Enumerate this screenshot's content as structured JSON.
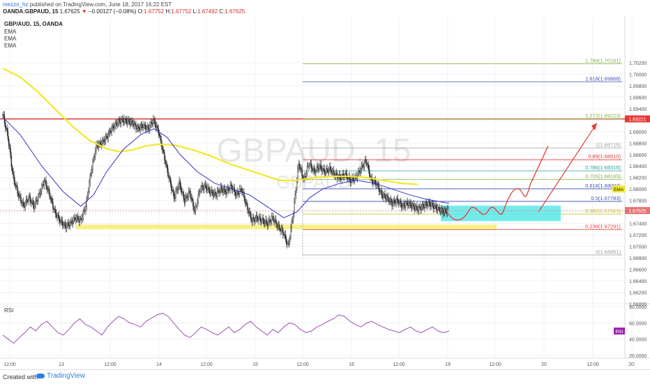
{
  "header": {
    "author": "mezzo_hz",
    "published": "published on TradingView.com, June 18, 2017 16:22 EST",
    "symbol_line": "OANDA:GBPAUD, 15",
    "last": "1.67625",
    "change_arrow": "▼",
    "change": "−0.00127 (−0.08%)",
    "o_label": "O:",
    "o": "1.67752",
    "h_label": "H:",
    "h": "1.67752",
    "l_label": "L:",
    "l": "1.67492",
    "c_label": "C:",
    "c": "1.67625"
  },
  "legend": {
    "title": "GBP/AUD, 15, OANDA",
    "items": [
      "EMA",
      "EMA",
      "EMA"
    ]
  },
  "watermark": {
    "big": "GBPAUD, 15",
    "small": "GBPAUD"
  },
  "price_tags": {
    "red_line": "1.69221",
    "current": "1.67625",
    "ema": "EMA"
  },
  "rsi_panel": {
    "label": "RSI",
    "tag": "RSI"
  },
  "footer": {
    "created": "Created with",
    "brand": "TradingView"
  },
  "colors": {
    "candle": "#222222",
    "ema_fast": "#3333cc",
    "ema_slow": "#f2e82a",
    "resistance": "#e53935",
    "support_band": "#f5ee7a",
    "target_box": "#5ce8e8",
    "projection": "#e53935",
    "rsi_line": "#9c4fb0",
    "rsi_tag": "#9c27b0",
    "grid": "#f0f0f0"
  },
  "chart_data": [
    {
      "type": "candlestick",
      "title": "GBP/AUD, 15, OANDA",
      "ylim": [
        1.66,
        1.71
      ],
      "y_ticks": [
        "1.70200",
        "1.70000",
        "1.69800",
        "1.69600",
        "1.69400",
        "1.69200",
        "1.69000",
        "1.68800",
        "1.68600",
        "1.68400",
        "1.68200",
        "1.68000",
        "1.67800",
        "1.67600",
        "1.67400",
        "1.67200",
        "1.67000",
        "1.66800",
        "1.66600",
        "1.66400",
        "1.66200",
        "1.66000"
      ],
      "x_ticks": [
        "12:00",
        "13",
        "12:00",
        "14",
        "12:00",
        "15",
        "12:00",
        "16",
        "12:00",
        "19",
        "12:00",
        "20",
        "12:00",
        "20:"
      ],
      "price_path": [
        [
          0,
          1.693
        ],
        [
          6,
          1.689
        ],
        [
          12,
          1.682
        ],
        [
          18,
          1.679
        ],
        [
          24,
          1.677
        ],
        [
          30,
          1.6785
        ],
        [
          36,
          1.677
        ],
        [
          42,
          1.679
        ],
        [
          48,
          1.6815
        ],
        [
          54,
          1.679
        ],
        [
          60,
          1.676
        ],
        [
          66,
          1.6745
        ],
        [
          72,
          1.6735
        ],
        [
          78,
          1.674
        ],
        [
          84,
          1.675
        ],
        [
          90,
          1.6745
        ],
        [
          96,
          1.677
        ],
        [
          102,
          1.683
        ],
        [
          108,
          1.6875
        ],
        [
          114,
          1.688
        ],
        [
          120,
          1.689
        ],
        [
          126,
          1.6905
        ],
        [
          132,
          1.6915
        ],
        [
          138,
          1.692
        ],
        [
          144,
          1.6918
        ],
        [
          150,
          1.6915
        ],
        [
          156,
          1.6905
        ],
        [
          162,
          1.691
        ],
        [
          168,
          1.6905
        ],
        [
          174,
          1.692
        ],
        [
          180,
          1.69
        ],
        [
          186,
          1.686
        ],
        [
          192,
          1.682
        ],
        [
          198,
          1.6785
        ],
        [
          204,
          1.681
        ],
        [
          210,
          1.678
        ],
        [
          216,
          1.6795
        ],
        [
          222,
          1.676
        ],
        [
          228,
          1.68
        ],
        [
          234,
          1.6805
        ],
        [
          240,
          1.6795
        ],
        [
          246,
          1.679
        ],
        [
          252,
          1.68
        ],
        [
          258,
          1.6795
        ],
        [
          264,
          1.6805
        ],
        [
          270,
          1.679
        ],
        [
          276,
          1.68
        ],
        [
          282,
          1.677
        ],
        [
          288,
          1.6745
        ],
        [
          294,
          1.675
        ],
        [
          300,
          1.6745
        ],
        [
          306,
          1.674
        ],
        [
          312,
          1.675
        ],
        [
          318,
          1.6735
        ],
        [
          324,
          1.6725
        ],
        [
          330,
          1.67
        ],
        [
          336,
          1.676
        ],
        [
          342,
          1.6845
        ],
        [
          348,
          1.6815
        ],
        [
          354,
          1.6845
        ],
        [
          360,
          1.683
        ],
        [
          366,
          1.684
        ],
        [
          372,
          1.683
        ],
        [
          378,
          1.6835
        ],
        [
          384,
          1.6825
        ],
        [
          390,
          1.682
        ],
        [
          396,
          1.6825
        ],
        [
          402,
          1.6815
        ],
        [
          408,
          1.682
        ],
        [
          414,
          1.6835
        ],
        [
          420,
          1.685
        ],
        [
          426,
          1.6815
        ],
        [
          432,
          1.681
        ],
        [
          438,
          1.679
        ],
        [
          444,
          1.6785
        ],
        [
          450,
          1.6775
        ],
        [
          456,
          1.678
        ],
        [
          462,
          1.677
        ],
        [
          468,
          1.6775
        ],
        [
          474,
          1.677
        ],
        [
          480,
          1.6765
        ],
        [
          486,
          1.677
        ],
        [
          492,
          1.6775
        ],
        [
          498,
          1.677
        ],
        [
          504,
          1.6765
        ],
        [
          510,
          1.676
        ],
        [
          516,
          1.6765
        ]
      ],
      "ema_fast": [
        [
          0,
          1.6925
        ],
        [
          20,
          1.6895
        ],
        [
          45,
          1.684
        ],
        [
          70,
          1.6795
        ],
        [
          90,
          1.677
        ],
        [
          105,
          1.679
        ],
        [
          120,
          1.683
        ],
        [
          140,
          1.687
        ],
        [
          160,
          1.6895
        ],
        [
          175,
          1.6905
        ],
        [
          190,
          1.689
        ],
        [
          205,
          1.686
        ],
        [
          225,
          1.683
        ],
        [
          245,
          1.681
        ],
        [
          265,
          1.68
        ],
        [
          285,
          1.679
        ],
        [
          305,
          1.677
        ],
        [
          325,
          1.675
        ],
        [
          340,
          1.676
        ],
        [
          355,
          1.6785
        ],
        [
          370,
          1.68
        ],
        [
          390,
          1.681
        ],
        [
          410,
          1.6815
        ],
        [
          430,
          1.681
        ],
        [
          450,
          1.68
        ],
        [
          470,
          1.679
        ],
        [
          490,
          1.6782
        ],
        [
          516,
          1.6775
        ]
      ],
      "ema_slow": [
        [
          0,
          1.701
        ],
        [
          20,
          1.6995
        ],
        [
          40,
          1.697
        ],
        [
          60,
          1.694
        ],
        [
          80,
          1.691
        ],
        [
          100,
          1.6885
        ],
        [
          120,
          1.687
        ],
        [
          135,
          1.6865
        ],
        [
          150,
          1.6868
        ],
        [
          165,
          1.6875
        ],
        [
          180,
          1.6878
        ],
        [
          200,
          1.6876
        ],
        [
          220,
          1.6868
        ],
        [
          240,
          1.6858
        ],
        [
          260,
          1.6845
        ],
        [
          280,
          1.6835
        ],
        [
          300,
          1.6825
        ],
        [
          320,
          1.6815
        ],
        [
          340,
          1.6815
        ],
        [
          360,
          1.682
        ],
        [
          380,
          1.6822
        ],
        [
          400,
          1.6822
        ],
        [
          420,
          1.682
        ],
        [
          440,
          1.6815
        ],
        [
          460,
          1.681
        ],
        [
          480,
          1.6808
        ]
      ],
      "fibonacci": [
        {
          "label": "1.786(1.70181)",
          "level": 1.70181,
          "color": "#7cb342"
        },
        {
          "label": "1.618(1.69868)",
          "level": 1.69868,
          "color": "#3f51b5"
        },
        {
          "label": "1.272(1.69223)",
          "level": 1.69223,
          "color": "#7cb342"
        },
        {
          "label": "1(1.68715)",
          "level": 1.68715,
          "color": "#9e9e9e"
        },
        {
          "label": "0.89(1.68510)",
          "level": 1.6851,
          "color": "#e53935"
        },
        {
          "label": "0.786(1.68316)",
          "level": 1.68316,
          "color": "#26a69a"
        },
        {
          "label": "0.705(1.68165)",
          "level": 1.68165,
          "color": "#7cb342"
        },
        {
          "label": "0.618(1.68003)",
          "level": 1.68003,
          "color": "#3f51b5"
        },
        {
          "label": "0.5(1.67783)",
          "level": 1.67783,
          "color": "#3f51b5"
        },
        {
          "label": "0.382(1.67563)",
          "level": 1.67563,
          "color": "#c0ca33"
        },
        {
          "label": "0.236(1.67291)",
          "level": 1.67291,
          "color": "#e53935"
        },
        {
          "label": "0(1.66851)",
          "level": 1.66851,
          "color": "#9e9e9e"
        }
      ],
      "resistance_level": 1.69221,
      "support_band": [
        1.673,
        1.6738
      ],
      "target_zone": [
        1.6744,
        1.6771
      ],
      "current_price": 1.67625
    },
    {
      "type": "line",
      "title": "RSI",
      "ylim": [
        20,
        80
      ],
      "y_ticks": [
        "80.0000",
        "60.0000",
        "40.0000",
        "20.0000"
      ],
      "values": [
        45,
        40,
        35,
        42,
        48,
        55,
        50,
        58,
        62,
        55,
        48,
        45,
        52,
        60,
        65,
        58,
        55,
        50,
        45,
        55,
        62,
        68,
        65,
        60,
        58,
        55,
        62,
        66,
        70,
        72,
        68,
        60,
        52,
        45,
        42,
        48,
        55,
        52,
        48,
        45,
        50,
        55,
        48,
        52,
        58,
        62,
        55,
        50,
        45,
        52,
        48,
        55,
        60,
        58,
        52,
        48,
        50,
        55,
        58,
        62,
        65,
        70,
        68,
        62,
        58,
        55,
        60,
        62,
        58,
        55,
        52,
        50,
        48,
        52,
        55,
        50,
        48,
        52,
        55,
        50,
        48,
        50
      ]
    }
  ]
}
